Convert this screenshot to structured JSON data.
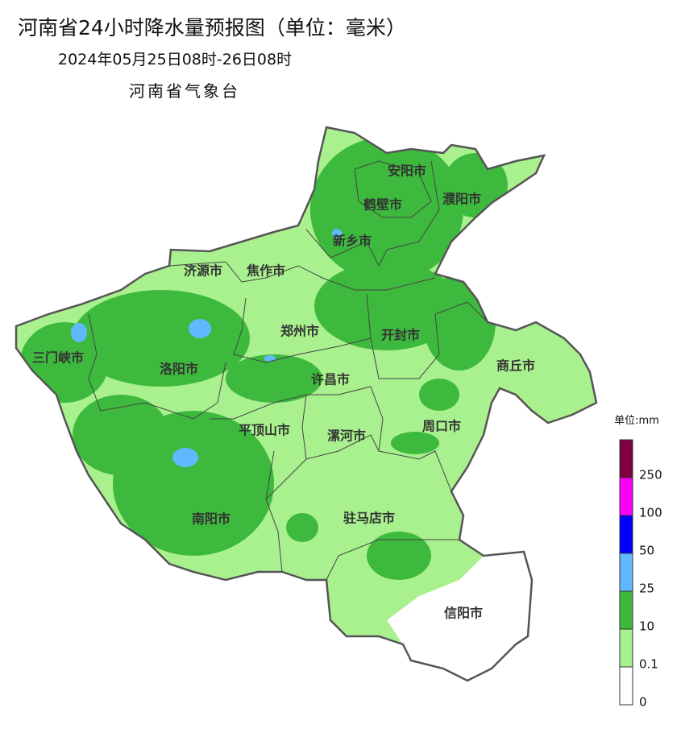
{
  "title": "河南省24小时降水量预报图（单位：毫米）",
  "subtitle": "2024年05月25日08时-26日08时",
  "issuer": "河南省气象台",
  "cities": [
    "安阳市",
    "鹤壁市",
    "濮阳市",
    "新乡市",
    "济源市",
    "焦作市",
    "郑州市",
    "开封市",
    "商丘市",
    "三门峡市",
    "洛阳市",
    "许昌市",
    "平顶山市",
    "漯河市",
    "周口市",
    "南阳市",
    "驻马店市",
    "信阳市"
  ],
  "legend": {
    "unit": "单位:mm",
    "colors": [
      "#ffffff",
      "#a9f08e",
      "#3dba3d",
      "#61b8ff",
      "#0000fe",
      "#fa00fa",
      "#800040"
    ],
    "ticks": [
      0,
      0.1,
      10,
      25,
      50,
      100,
      250
    ]
  }
}
